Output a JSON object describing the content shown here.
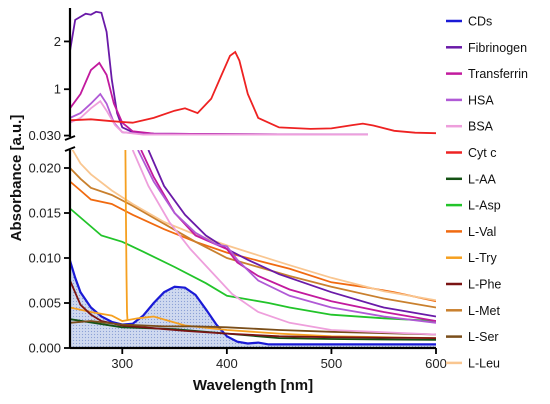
{
  "chart_data": {
    "type": "line",
    "title": "",
    "xlabel": "Wavelength [nm]",
    "ylabel": "Absorbance [a.u.]",
    "xlim": [
      250,
      600
    ],
    "x_ticks": [
      300,
      400,
      500,
      600
    ],
    "broken_y_axis": true,
    "y_lower_range": [
      0,
      0.022
    ],
    "y_lower_ticks": [
      "0.000",
      "0.005",
      "0.010",
      "0.015",
      "0.020"
    ],
    "y_upper_range": [
      0.0,
      2.7
    ],
    "y_upper_ticks": [
      {
        "label": "2",
        "value": 2
      },
      {
        "label": "1",
        "value": 1
      },
      {
        "label": "0.030",
        "value": 0.03
      }
    ],
    "grid": false,
    "legend_position": "right",
    "series": [
      {
        "name": "CDs",
        "color": "#1a1ad6",
        "filled": true,
        "points": [
          [
            250,
            0.0097
          ],
          [
            255,
            0.0078
          ],
          [
            260,
            0.0062
          ],
          [
            270,
            0.0045
          ],
          [
            280,
            0.0035
          ],
          [
            290,
            0.0029
          ],
          [
            300,
            0.0026
          ],
          [
            310,
            0.0027
          ],
          [
            320,
            0.0036
          ],
          [
            330,
            0.005
          ],
          [
            340,
            0.0062
          ],
          [
            350,
            0.0068
          ],
          [
            360,
            0.0067
          ],
          [
            370,
            0.0059
          ],
          [
            380,
            0.0043
          ],
          [
            390,
            0.0026
          ],
          [
            400,
            0.0013
          ],
          [
            410,
            0.0007
          ],
          [
            420,
            0.0005
          ],
          [
            430,
            0.0006
          ],
          [
            440,
            0.0004
          ],
          [
            460,
            0.0004
          ],
          [
            500,
            0.0004
          ],
          [
            550,
            0.0004
          ],
          [
            600,
            0.0004
          ]
        ]
      },
      {
        "name": "Fibrinogen",
        "color": "#6a1aa8",
        "points": [
          [
            250,
            1.8
          ],
          [
            255,
            2.45
          ],
          [
            265,
            2.58
          ],
          [
            270,
            2.56
          ],
          [
            275,
            2.62
          ],
          [
            280,
            2.6
          ],
          [
            285,
            2.2
          ],
          [
            290,
            1.2
          ],
          [
            295,
            0.5
          ],
          [
            300,
            0.2
          ],
          [
            310,
            0.1
          ],
          [
            330,
            0.07
          ],
          [
            400,
            0.06
          ],
          [
            500,
            0.05
          ],
          [
            535,
            0.05
          ]
        ]
      },
      {
        "name": "Transferrin",
        "color": "#c21a9e",
        "points": [
          [
            250,
            0.6
          ],
          [
            260,
            0.9
          ],
          [
            270,
            1.4
          ],
          [
            278,
            1.55
          ],
          [
            285,
            1.3
          ],
          [
            292,
            0.7
          ],
          [
            300,
            0.3
          ],
          [
            310,
            0.12
          ],
          [
            330,
            0.07
          ],
          [
            400,
            0.06
          ],
          [
            500,
            0.05
          ],
          [
            535,
            0.05
          ]
        ]
      },
      {
        "name": "HSA",
        "color": "#b05ad6",
        "points": [
          [
            250,
            0.4
          ],
          [
            260,
            0.5
          ],
          [
            270,
            0.7
          ],
          [
            279,
            0.9
          ],
          [
            285,
            0.7
          ],
          [
            292,
            0.3
          ],
          [
            300,
            0.1
          ],
          [
            320,
            0.06
          ],
          [
            400,
            0.05
          ],
          [
            500,
            0.05
          ],
          [
            535,
            0.05
          ]
        ]
      },
      {
        "name": "BSA",
        "color": "#ee9fdc",
        "points": [
          [
            250,
            0.3
          ],
          [
            260,
            0.4
          ],
          [
            270,
            0.6
          ],
          [
            279,
            0.75
          ],
          [
            285,
            0.55
          ],
          [
            293,
            0.25
          ],
          [
            300,
            0.1
          ],
          [
            320,
            0.05
          ],
          [
            400,
            0.05
          ],
          [
            500,
            0.05
          ],
          [
            535,
            0.05
          ]
        ]
      },
      {
        "name": "Cyt c",
        "color": "#ee2222",
        "points": [
          [
            250,
            0.35
          ],
          [
            270,
            0.37
          ],
          [
            290,
            0.33
          ],
          [
            310,
            0.3
          ],
          [
            330,
            0.4
          ],
          [
            350,
            0.55
          ],
          [
            360,
            0.6
          ],
          [
            372,
            0.5
          ],
          [
            385,
            0.8
          ],
          [
            395,
            1.3
          ],
          [
            403,
            1.7
          ],
          [
            408,
            1.78
          ],
          [
            412,
            1.6
          ],
          [
            420,
            0.9
          ],
          [
            430,
            0.4
          ],
          [
            450,
            0.2
          ],
          [
            480,
            0.17
          ],
          [
            500,
            0.18
          ],
          [
            520,
            0.25
          ],
          [
            530,
            0.28
          ],
          [
            540,
            0.24
          ],
          [
            560,
            0.13
          ],
          [
            580,
            0.09
          ],
          [
            600,
            0.08
          ]
        ]
      },
      {
        "name": "L-AA",
        "color": "#145214",
        "points": [
          [
            250,
            0.0032
          ],
          [
            300,
            0.0023
          ],
          [
            350,
            0.0021
          ],
          [
            400,
            0.0016
          ],
          [
            450,
            0.0011
          ],
          [
            500,
            0.001
          ],
          [
            600,
            0.0009
          ]
        ]
      },
      {
        "name": "L-Asp",
        "color": "#22c42a",
        "points": [
          [
            250,
            0.0155
          ],
          [
            265,
            0.014
          ],
          [
            280,
            0.0125
          ],
          [
            300,
            0.0118
          ],
          [
            320,
            0.0107
          ],
          [
            350,
            0.009
          ],
          [
            380,
            0.0072
          ],
          [
            400,
            0.0058
          ],
          [
            420,
            0.0054
          ],
          [
            440,
            0.005
          ],
          [
            460,
            0.0045
          ],
          [
            500,
            0.0037
          ],
          [
            550,
            0.0033
          ],
          [
            600,
            0.003
          ]
        ]
      },
      {
        "name": "L-Val",
        "color": "#f06a10",
        "points": [
          [
            250,
            0.0185
          ],
          [
            260,
            0.0175
          ],
          [
            270,
            0.0165
          ],
          [
            290,
            0.016
          ],
          [
            310,
            0.0148
          ],
          [
            340,
            0.0132
          ],
          [
            370,
            0.0118
          ],
          [
            400,
            0.0106
          ],
          [
            430,
            0.0097
          ],
          [
            460,
            0.0088
          ],
          [
            500,
            0.0073
          ],
          [
            530,
            0.0068
          ],
          [
            560,
            0.0062
          ],
          [
            600,
            0.0052
          ]
        ]
      },
      {
        "name": "L-Try",
        "color": "#f5a020",
        "points": [
          [
            250,
            0.0045
          ],
          [
            270,
            0.004
          ],
          [
            290,
            0.0036
          ],
          [
            300,
            0.003
          ],
          [
            305,
            0.0031
          ],
          [
            315,
            0.0033
          ],
          [
            330,
            0.0035
          ],
          [
            360,
            0.0025
          ],
          [
            400,
            0.002
          ],
          [
            450,
            0.0016
          ],
          [
            500,
            0.0013
          ],
          [
            600,
            0.0011
          ]
        ]
      },
      {
        "name": "L-Phe",
        "color": "#7a1414",
        "points": [
          [
            250,
            0.0075
          ],
          [
            260,
            0.0048
          ],
          [
            270,
            0.0037
          ],
          [
            280,
            0.003
          ],
          [
            300,
            0.0025
          ],
          [
            330,
            0.0022
          ],
          [
            360,
            0.0019
          ],
          [
            400,
            0.0016
          ],
          [
            450,
            0.0013
          ],
          [
            500,
            0.0012
          ],
          [
            600,
            0.0011
          ]
        ]
      },
      {
        "name": "L-Met",
        "color": "#c9802e",
        "points": [
          [
            250,
            0.02
          ],
          [
            260,
            0.0188
          ],
          [
            270,
            0.0178
          ],
          [
            290,
            0.017
          ],
          [
            310,
            0.0158
          ],
          [
            340,
            0.0138
          ],
          [
            370,
            0.0118
          ],
          [
            400,
            0.01
          ],
          [
            430,
            0.009
          ],
          [
            460,
            0.008
          ],
          [
            500,
            0.0068
          ],
          [
            550,
            0.0055
          ],
          [
            600,
            0.0045
          ]
        ]
      },
      {
        "name": "L-Ser",
        "color": "#7a4e1a",
        "points": [
          [
            250,
            0.0028
          ],
          [
            270,
            0.003
          ],
          [
            300,
            0.0026
          ],
          [
            340,
            0.0024
          ],
          [
            370,
            0.0024
          ],
          [
            400,
            0.0023
          ],
          [
            450,
            0.002
          ],
          [
            500,
            0.0018
          ],
          [
            600,
            0.0015
          ]
        ]
      },
      {
        "name": "L-Leu",
        "color": "#f9c690",
        "points": [
          [
            250,
            0.0225
          ],
          [
            260,
            0.0205
          ],
          [
            270,
            0.0193
          ],
          [
            290,
            0.0175
          ],
          [
            310,
            0.016
          ],
          [
            340,
            0.014
          ],
          [
            370,
            0.0126
          ],
          [
            400,
            0.0114
          ],
          [
            430,
            0.0103
          ],
          [
            460,
            0.0092
          ],
          [
            500,
            0.0078
          ],
          [
            550,
            0.0063
          ],
          [
            600,
            0.0053
          ]
        ]
      }
    ],
    "lower_panel_only": [
      {
        "name": "Fibrinogen",
        "color": "#6a1aa8",
        "points": [
          [
            325,
            0.022
          ],
          [
            340,
            0.018
          ],
          [
            360,
            0.0148
          ],
          [
            380,
            0.0125
          ],
          [
            400,
            0.011
          ],
          [
            420,
            0.0098
          ],
          [
            450,
            0.0082
          ],
          [
            500,
            0.0062
          ],
          [
            550,
            0.0045
          ],
          [
            600,
            0.0035
          ]
        ]
      },
      {
        "name": "Transferrin",
        "color": "#c21a9e",
        "points": [
          [
            318,
            0.022
          ],
          [
            330,
            0.019
          ],
          [
            350,
            0.015
          ],
          [
            370,
            0.0125
          ],
          [
            390,
            0.0115
          ],
          [
            400,
            0.011
          ],
          [
            410,
            0.0095
          ],
          [
            430,
            0.008
          ],
          [
            460,
            0.0065
          ],
          [
            500,
            0.0052
          ],
          [
            550,
            0.004
          ],
          [
            600,
            0.003
          ]
        ]
      },
      {
        "name": "HSA",
        "color": "#b05ad6",
        "points": [
          [
            315,
            0.022
          ],
          [
            330,
            0.0185
          ],
          [
            350,
            0.015
          ],
          [
            370,
            0.0128
          ],
          [
            390,
            0.0115
          ],
          [
            400,
            0.0113
          ],
          [
            410,
            0.0098
          ],
          [
            430,
            0.0075
          ],
          [
            460,
            0.0058
          ],
          [
            500,
            0.0045
          ],
          [
            550,
            0.0035
          ],
          [
            600,
            0.0028
          ]
        ]
      },
      {
        "name": "BSA",
        "color": "#ee9fdc",
        "points": [
          [
            310,
            0.022
          ],
          [
            325,
            0.018
          ],
          [
            345,
            0.014
          ],
          [
            365,
            0.011
          ],
          [
            385,
            0.0085
          ],
          [
            405,
            0.006
          ],
          [
            430,
            0.004
          ],
          [
            460,
            0.0028
          ],
          [
            500,
            0.002
          ],
          [
            600,
            0.0015
          ]
        ]
      },
      {
        "name": "L-Try",
        "color": "#f5a020",
        "points": [
          [
            303,
            0.022
          ],
          [
            303.5,
            0.015
          ],
          [
            304,
            0.008
          ],
          [
            304.5,
            0.004
          ],
          [
            305,
            0.0031
          ]
        ]
      }
    ]
  }
}
